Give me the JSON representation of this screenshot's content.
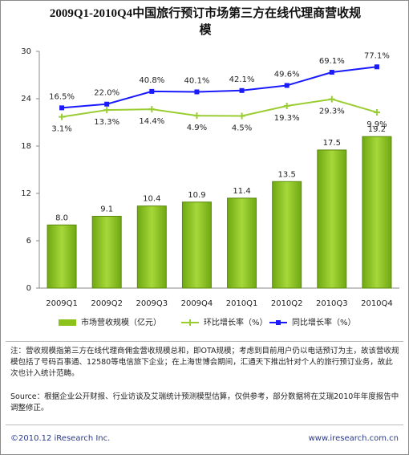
{
  "chart_data": {
    "type": "bar",
    "title": "2009Q1-2010Q4中国旅行预订市场第三方在线代理商营收规模",
    "categories": [
      "2009Q1",
      "2009Q2",
      "2009Q3",
      "2009Q4",
      "2010Q1",
      "2010Q2",
      "2010Q3",
      "2010Q4"
    ],
    "series": [
      {
        "name": "市场营收规模（亿元）",
        "type": "bar",
        "color": "#8cc21a",
        "values": [
          8.0,
          9.1,
          10.4,
          10.9,
          11.4,
          13.5,
          17.5,
          19.2
        ],
        "value_labels": [
          "8.0",
          "9.1",
          "10.4",
          "10.9",
          "11.4",
          "13.5",
          "17.5",
          "19.2"
        ]
      },
      {
        "name": "环比增长率（%）",
        "type": "line",
        "axis": "y2",
        "color": "#9acd32",
        "values": [
          3.1,
          13.3,
          14.4,
          4.9,
          4.5,
          19.3,
          29.3,
          9.9
        ],
        "value_labels": [
          "3.1%",
          "13.3%",
          "14.4%",
          "4.9%",
          "4.5%",
          "19.3%",
          "29.3%",
          "9.9%"
        ]
      },
      {
        "name": "同比增长率（%）",
        "type": "line",
        "axis": "y2",
        "color": "#1a1aff",
        "values": [
          16.5,
          22.0,
          40.8,
          40.1,
          42.1,
          49.6,
          69.1,
          77.1
        ],
        "value_labels": [
          "16.5%",
          "22.0%",
          "40.8%",
          "40.1%",
          "42.1%",
          "49.6%",
          "69.1%",
          "77.1%"
        ]
      }
    ],
    "ylim": [
      0,
      30
    ],
    "yticks": [
      0,
      6,
      12,
      18,
      24,
      30
    ],
    "y2lim": [
      -250,
      100
    ]
  },
  "notes": {
    "note": "注：营收规模指第三方在线代理商佣金营收规模总和，即OTA规模；考虑到目前用户仍以电话预订为主，故该营收规模包括了号码百事通、12580等电信旅下企业；在上海世博会期间，汇通天下推出针对个人的旅行预订业务，故此次也计入统计范畴。",
    "source": "Source：根据企业公开财报、行业访谈及艾瑞统计预测模型估算，仅供参考，部分数据将在艾瑞2010年年度报告中调整修正。"
  },
  "footer": {
    "copyright": "©2010.12 iResearch Inc.",
    "website": "www.iresearch.com.cn"
  }
}
